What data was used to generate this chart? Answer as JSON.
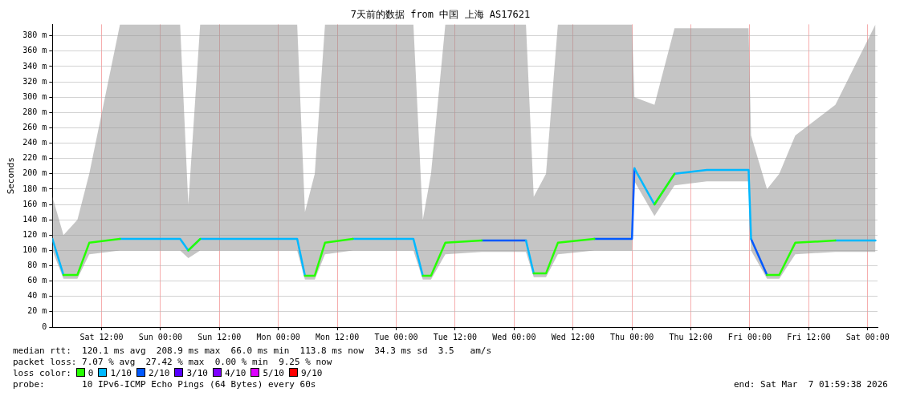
{
  "chart_data": {
    "type": "line",
    "title": "7天前的数据 from 中国 上海 AS17621",
    "ylabel": "Seconds",
    "legend_title": "loss color:",
    "x": [
      "2026-02-28T02:00",
      "2026-02-28T04:15",
      "2026-02-28T07:05",
      "2026-02-28T09:30",
      "2026-02-28T15:45",
      "2026-03-01T04:00",
      "2026-03-01T05:40",
      "2026-03-01T08:05",
      "2026-03-02T03:50",
      "2026-03-02T05:25",
      "2026-03-02T07:25",
      "2026-03-02T09:30",
      "2026-03-02T15:10",
      "2026-03-03T03:30",
      "2026-03-03T05:25",
      "2026-03-03T07:05",
      "2026-03-03T10:00",
      "2026-03-03T17:25",
      "2026-03-04T02:25",
      "2026-03-04T04:00",
      "2026-03-04T06:30",
      "2026-03-04T08:55",
      "2026-03-04T16:20",
      "2026-03-05T00:00",
      "2026-03-05T00:30",
      "2026-03-05T04:35",
      "2026-03-05T08:40",
      "2026-03-05T15:15",
      "2026-03-05T23:45",
      "2026-03-06T00:15",
      "2026-03-06T03:30",
      "2026-03-06T06:00",
      "2026-03-06T09:15",
      "2026-03-06T17:25",
      "2026-03-07T01:35"
    ],
    "series": [
      {
        "name": "0",
        "color": "#26ff00",
        "values": [
          null,
          68,
          68,
          110,
          115,
          null,
          100,
          115,
          null,
          67,
          67,
          110,
          115,
          null,
          67,
          67,
          110,
          113,
          null,
          70,
          70,
          110,
          115,
          null,
          null,
          160,
          200,
          null,
          null,
          null,
          68,
          68,
          110,
          113,
          null
        ]
      },
      {
        "name": "1/10",
        "color": "#00b8ff",
        "values": [
          115,
          68,
          null,
          null,
          115,
          115,
          100,
          115,
          115,
          67,
          null,
          null,
          115,
          115,
          67,
          null,
          null,
          null,
          113,
          70,
          null,
          null,
          null,
          null,
          207,
          160,
          200,
          205,
          205,
          115,
          null,
          null,
          null,
          113,
          113
        ],
        "lower": [
          100,
          63,
          63,
          95,
          100,
          100,
          90,
          100,
          100,
          62,
          62,
          95,
          100,
          100,
          62,
          62,
          95,
          98,
          98,
          65,
          65,
          95,
          100,
          100,
          190,
          145,
          185,
          190,
          190,
          100,
          63,
          63,
          95,
          98,
          98
        ],
        "upper": [
          170,
          120,
          140,
          200,
          395,
          395,
          160,
          395,
          395,
          150,
          200,
          395,
          395,
          395,
          140,
          200,
          395,
          395,
          395,
          170,
          200,
          395,
          395,
          395,
          300,
          290,
          390,
          390,
          390,
          250,
          180,
          200,
          250,
          290,
          395
        ]
      },
      {
        "name": "2/10",
        "color": "#0059ff",
        "values": [
          null,
          null,
          null,
          null,
          null,
          null,
          null,
          null,
          null,
          null,
          null,
          null,
          null,
          null,
          null,
          null,
          null,
          113,
          113,
          null,
          null,
          null,
          115,
          115,
          207,
          null,
          null,
          null,
          null,
          115,
          68,
          null,
          null,
          null,
          null
        ]
      },
      {
        "name": "3/10",
        "color": "#5500ff",
        "values": [
          null,
          null,
          null,
          null,
          null,
          null,
          null,
          null,
          null,
          null,
          null,
          null,
          null,
          null,
          null,
          null,
          null,
          null,
          null,
          null,
          null,
          null,
          null,
          null,
          null,
          null,
          null,
          null,
          null,
          null,
          null,
          null,
          null,
          null,
          null
        ]
      },
      {
        "name": "4/10",
        "color": "#7e00ff",
        "values": [
          null,
          null,
          null,
          null,
          null,
          null,
          null,
          null,
          null,
          null,
          null,
          null,
          null,
          null,
          null,
          null,
          null,
          null,
          null,
          null,
          null,
          null,
          null,
          null,
          null,
          null,
          null,
          null,
          null,
          null,
          null,
          null,
          null,
          null,
          null
        ]
      },
      {
        "name": "5/10",
        "color": "#dd00ff",
        "values": [
          null,
          null,
          null,
          null,
          null,
          null,
          null,
          null,
          null,
          null,
          null,
          null,
          null,
          null,
          null,
          null,
          null,
          null,
          null,
          null,
          null,
          null,
          null,
          null,
          null,
          null,
          null,
          null,
          null,
          null,
          null,
          null,
          null,
          null,
          null
        ]
      },
      {
        "name": "9/10",
        "color": "#ff0000",
        "values": [
          null,
          null,
          null,
          null,
          null,
          null,
          null,
          null,
          null,
          null,
          null,
          null,
          null,
          null,
          null,
          null,
          null,
          null,
          null,
          null,
          null,
          null,
          null,
          null,
          null,
          null,
          null,
          null,
          null,
          null,
          null,
          null,
          null,
          null,
          null
        ]
      }
    ],
    "xlim": [
      "2026-02-28T02:00",
      "2026-03-07T02:00"
    ],
    "xticks": [
      {
        "value": "2026-02-28T12:00",
        "label": "Sat 12:00"
      },
      {
        "value": "2026-03-01T00:00",
        "label": "Sun 00:00"
      },
      {
        "value": "2026-03-01T12:00",
        "label": "Sun 12:00"
      },
      {
        "value": "2026-03-02T00:00",
        "label": "Mon 00:00"
      },
      {
        "value": "2026-03-02T12:00",
        "label": "Mon 12:00"
      },
      {
        "value": "2026-03-03T00:00",
        "label": "Tue 00:00"
      },
      {
        "value": "2026-03-03T12:00",
        "label": "Tue 12:00"
      },
      {
        "value": "2026-03-04T00:00",
        "label": "Wed 00:00"
      },
      {
        "value": "2026-03-04T12:00",
        "label": "Wed 12:00"
      },
      {
        "value": "2026-03-05T00:00",
        "label": "Thu 00:00"
      },
      {
        "value": "2026-03-05T12:00",
        "label": "Thu 12:00"
      },
      {
        "value": "2026-03-06T00:00",
        "label": "Fri 00:00"
      },
      {
        "value": "2026-03-06T12:00",
        "label": "Fri 12:00"
      },
      {
        "value": "2026-03-07T00:00",
        "label": "Sat 00:00"
      }
    ],
    "ylim": [
      0,
      395
    ],
    "yticks": [
      0,
      {
        "value": 20,
        "label": "20 m"
      },
      {
        "value": 40,
        "label": "40 m"
      },
      {
        "value": 60,
        "label": "60 m"
      },
      {
        "value": 80,
        "label": "80 m"
      },
      {
        "value": 100,
        "label": "100 m"
      },
      {
        "value": 120,
        "label": "120 m"
      },
      {
        "value": 140,
        "label": "140 m"
      },
      {
        "value": 160,
        "label": "160 m"
      },
      {
        "value": 180,
        "label": "180 m"
      },
      {
        "value": 200,
        "label": "200 m"
      },
      {
        "value": 220,
        "label": "220 m"
      },
      {
        "value": 240,
        "label": "240 m"
      },
      {
        "value": 260,
        "label": "260 m"
      },
      {
        "value": 280,
        "label": "280 m"
      },
      {
        "value": 300,
        "label": "300 m"
      },
      {
        "value": 320,
        "label": "320 m"
      },
      {
        "value": 340,
        "label": "340 m"
      },
      {
        "value": 360,
        "label": "360 m"
      },
      {
        "value": 380,
        "label": "380 m"
      }
    ],
    "grid": true,
    "legend": "bottom",
    "marker": "none",
    "line_style": "solid",
    "annotations": [
      "median rtt:  120.1 ms avg  208.9 ms max  66.0 ms min  113.8 ms now  34.3 ms sd  3.5   am/s",
      "packet loss: 7.07 % avg  27.42 % max  0.00 % min  9.25 % now",
      "probe:       10 IPv6-ICMP Echo Pings (64 Bytes) every 60s",
      "end: Sat Mar  7 01:59:38 2026"
    ]
  }
}
